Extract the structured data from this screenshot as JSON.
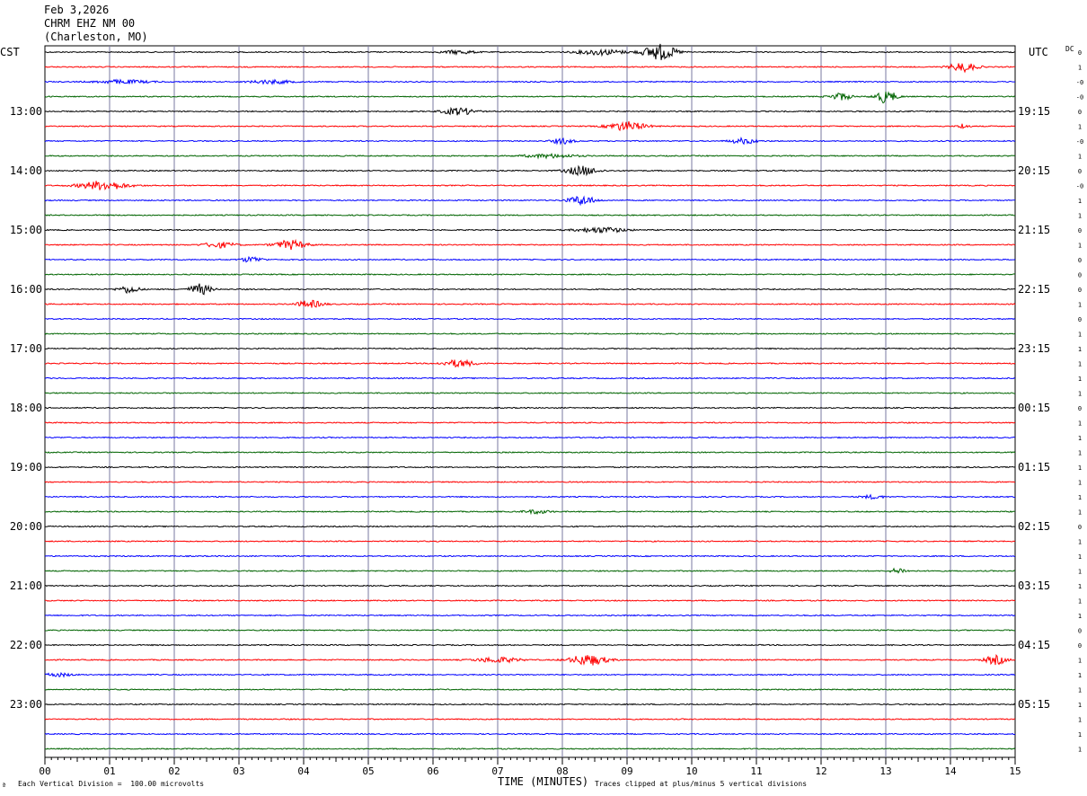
{
  "header": {
    "date": "Feb 3,2026",
    "station": "CHRM EHZ NM 00",
    "location": "(Charleston, MO)"
  },
  "left_timezone": "CST",
  "right_timezone": "UTC",
  "dc_label": "DC",
  "footer": {
    "vertical_division": "Each Vertical Division =  100.00 microvolts",
    "xlabel": "TIME (MINUTES)",
    "clip_note": "Traces clipped at plus/minus 5 vertical divisions",
    "corner_mark": "ª"
  },
  "colors": {
    "trace_cycle": [
      "#000000",
      "#ff0000",
      "#0000ff",
      "#006400"
    ],
    "grid": "#7a7aa0"
  },
  "chart_data": {
    "type": "line",
    "title": "Feb 3,2026 CHRM EHZ NM 00 (Charleston, MO)",
    "xlabel": "TIME (MINUTES)",
    "xlim": [
      0,
      15
    ],
    "x_ticks": [
      "00",
      "01",
      "02",
      "03",
      "04",
      "05",
      "06",
      "07",
      "08",
      "09",
      "10",
      "11",
      "12",
      "13",
      "14",
      "15"
    ],
    "left_hour_labels": [
      "13:00",
      "14:00",
      "15:00",
      "16:00",
      "17:00",
      "18:00",
      "19:00",
      "20:00",
      "21:00",
      "22:00",
      "23:00"
    ],
    "right_hour_labels": [
      "19:15",
      "20:15",
      "21:15",
      "22:15",
      "23:15",
      "00:15",
      "01:15",
      "02:15",
      "03:15",
      "04:15",
      "05:15"
    ],
    "row_count": 48,
    "dc_values": [
      "0",
      "1",
      "-0",
      "-0",
      "0",
      "1",
      "-0",
      "1",
      "0",
      "-0",
      "1",
      "1",
      "0",
      "1",
      "0",
      "0",
      "0",
      "1",
      "0",
      "1",
      "1",
      "1",
      "1",
      "1",
      "0",
      "1",
      "1",
      "1",
      "1",
      "1",
      "1",
      "1",
      "0",
      "1",
      "1",
      "1",
      "1",
      "1",
      "1",
      "0",
      "0",
      "1",
      "1",
      "1",
      "1",
      "1",
      "1",
      "1"
    ],
    "events": [
      {
        "row": 0,
        "center_min": 9.5,
        "width_min": 0.6,
        "amplitude": 9
      },
      {
        "row": 0,
        "center_min": 8.6,
        "width_min": 0.9,
        "amplitude": 3
      },
      {
        "row": 0,
        "center_min": 6.4,
        "width_min": 0.6,
        "amplitude": 2
      },
      {
        "row": 1,
        "center_min": 14.2,
        "width_min": 0.5,
        "amplitude": 5
      },
      {
        "row": 2,
        "center_min": 1.2,
        "width_min": 1.0,
        "amplitude": 2
      },
      {
        "row": 2,
        "center_min": 3.5,
        "width_min": 0.8,
        "amplitude": 2
      },
      {
        "row": 3,
        "center_min": 12.3,
        "width_min": 0.4,
        "amplitude": 4
      },
      {
        "row": 3,
        "center_min": 13.0,
        "width_min": 0.4,
        "amplitude": 7
      },
      {
        "row": 4,
        "center_min": 6.4,
        "width_min": 0.6,
        "amplitude": 4
      },
      {
        "row": 5,
        "center_min": 9.0,
        "width_min": 0.7,
        "amplitude": 5
      },
      {
        "row": 5,
        "center_min": 14.2,
        "width_min": 0.2,
        "amplitude": 3
      },
      {
        "row": 6,
        "center_min": 8.0,
        "width_min": 0.4,
        "amplitude": 3
      },
      {
        "row": 6,
        "center_min": 10.8,
        "width_min": 0.5,
        "amplitude": 3
      },
      {
        "row": 7,
        "center_min": 7.8,
        "width_min": 1.0,
        "amplitude": 2
      },
      {
        "row": 8,
        "center_min": 8.3,
        "width_min": 0.6,
        "amplitude": 5
      },
      {
        "row": 9,
        "center_min": 0.9,
        "width_min": 0.9,
        "amplitude": 5
      },
      {
        "row": 10,
        "center_min": 8.3,
        "width_min": 0.5,
        "amplitude": 5
      },
      {
        "row": 12,
        "center_min": 8.6,
        "width_min": 0.9,
        "amplitude": 3
      },
      {
        "row": 13,
        "center_min": 3.8,
        "width_min": 0.6,
        "amplitude": 5
      },
      {
        "row": 13,
        "center_min": 2.7,
        "width_min": 0.6,
        "amplitude": 3
      },
      {
        "row": 14,
        "center_min": 3.2,
        "width_min": 0.4,
        "amplitude": 3
      },
      {
        "row": 16,
        "center_min": 1.3,
        "width_min": 0.4,
        "amplitude": 4
      },
      {
        "row": 16,
        "center_min": 2.4,
        "width_min": 0.4,
        "amplitude": 6
      },
      {
        "row": 17,
        "center_min": 4.1,
        "width_min": 0.5,
        "amplitude": 4
      },
      {
        "row": 21,
        "center_min": 6.4,
        "width_min": 0.6,
        "amplitude": 4
      },
      {
        "row": 30,
        "center_min": 12.8,
        "width_min": 0.4,
        "amplitude": 2
      },
      {
        "row": 31,
        "center_min": 7.6,
        "width_min": 0.5,
        "amplitude": 2
      },
      {
        "row": 35,
        "center_min": 13.2,
        "width_min": 0.3,
        "amplitude": 3
      },
      {
        "row": 41,
        "center_min": 8.4,
        "width_min": 0.7,
        "amplitude": 6
      },
      {
        "row": 41,
        "center_min": 7.0,
        "width_min": 0.8,
        "amplitude": 3
      },
      {
        "row": 41,
        "center_min": 14.7,
        "width_min": 0.4,
        "amplitude": 5
      },
      {
        "row": 42,
        "center_min": 0.2,
        "width_min": 0.5,
        "amplitude": 2
      }
    ],
    "grid": true
  }
}
